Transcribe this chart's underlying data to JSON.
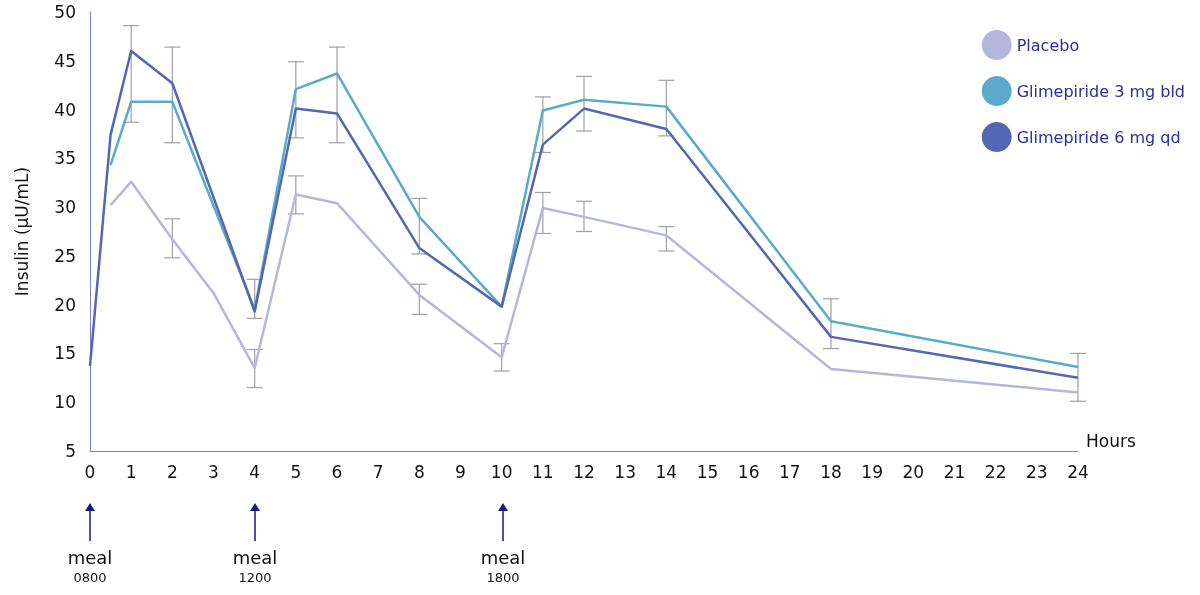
{
  "chart_data": {
    "type": "line",
    "xlabel": "Hours",
    "ylabel": "Insulin (µU/mL)",
    "xlim": [
      0,
      24
    ],
    "xticks": [
      0,
      1,
      2,
      3,
      4,
      5,
      6,
      7,
      8,
      9,
      10,
      11,
      12,
      13,
      14,
      15,
      16,
      17,
      18,
      19,
      20,
      21,
      22,
      23,
      24
    ],
    "ylim": [
      5,
      50
    ],
    "yticks": [
      5,
      10,
      15,
      20,
      25,
      30,
      35,
      40,
      45,
      50
    ],
    "grid": false,
    "legend": "top right",
    "marker": "none",
    "line_style": "solid",
    "series": [
      {
        "name": "Placebo",
        "color": "#b4b6dc",
        "x": [
          0.5,
          1,
          2,
          3,
          4,
          5,
          6,
          8,
          10,
          11,
          12,
          14,
          18,
          24
        ],
        "values": [
          30.2,
          32.6,
          26.7,
          21.2,
          13.5,
          31.3,
          30.4,
          21,
          14.6,
          29.9,
          29.0,
          27.1,
          13.4,
          11.0
        ],
        "errors": [
          null,
          null,
          [
            24.8,
            28.8
          ],
          null,
          [
            11.5,
            15.4
          ],
          [
            29.3,
            33.2
          ],
          null,
          [
            19.0,
            22.1
          ],
          [
            13.2,
            16.0
          ],
          [
            27.3,
            31.5
          ],
          [
            27.5,
            30.6
          ],
          [
            25.5,
            28.0
          ],
          null,
          null
        ]
      },
      {
        "name": "Glimepiride 3 mg bld",
        "color": "#5aaacb",
        "x": [
          0.5,
          1,
          2,
          4,
          5,
          6,
          8,
          10,
          11,
          12,
          14,
          18,
          24
        ],
        "values": [
          34.3,
          40.8,
          40.8,
          19.5,
          42.1,
          43.7,
          29.0,
          19.8,
          39.9,
          41.0,
          40.3,
          18.3,
          13.6
        ],
        "errors": [
          null,
          null,
          null,
          null,
          [
            37.1,
            44.9
          ],
          [
            36.6,
            46.4
          ],
          [
            25.2,
            30.9
          ],
          null,
          [
            35.6,
            41.3
          ],
          null,
          [
            37.3,
            43.0
          ],
          [
            15.5,
            20.6
          ],
          null
        ]
      },
      {
        "name": "Glimepiride 6 mg qd",
        "color": "#5467b3",
        "x": [
          0,
          0.5,
          1,
          2,
          4,
          5,
          6,
          8,
          10,
          11,
          12,
          14,
          18,
          24
        ],
        "values": [
          13.7,
          37.4,
          46.0,
          42.7,
          19.3,
          40.1,
          39.6,
          25.8,
          19.8,
          36.4,
          40.1,
          38.0,
          16.7,
          12.5
        ],
        "errors": [
          null,
          null,
          [
            38.7,
            48.6
          ],
          [
            36.6,
            46.4
          ],
          [
            18.6,
            22.6
          ],
          null,
          null,
          null,
          null,
          null,
          [
            37.8,
            43.4
          ],
          null,
          null,
          [
            10.1,
            15.0
          ]
        ]
      }
    ],
    "annotations": [
      "meal 0800",
      "meal 1200",
      "meal 1800"
    ]
  }
}
